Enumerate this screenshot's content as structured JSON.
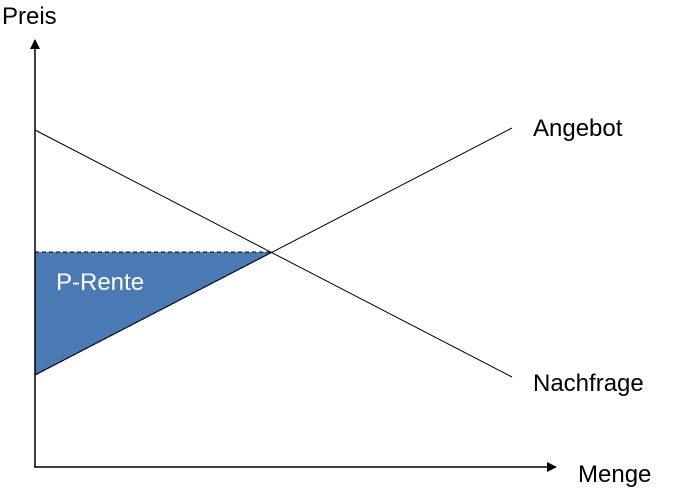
{
  "diagram": {
    "axes": {
      "y_label": "Preis",
      "x_label": "Menge"
    },
    "curves": {
      "supply_label": "Angebot",
      "demand_label": "Nachfrage"
    },
    "area": {
      "label": "P-Rente",
      "fill_color": "#4a7ab4"
    }
  }
}
